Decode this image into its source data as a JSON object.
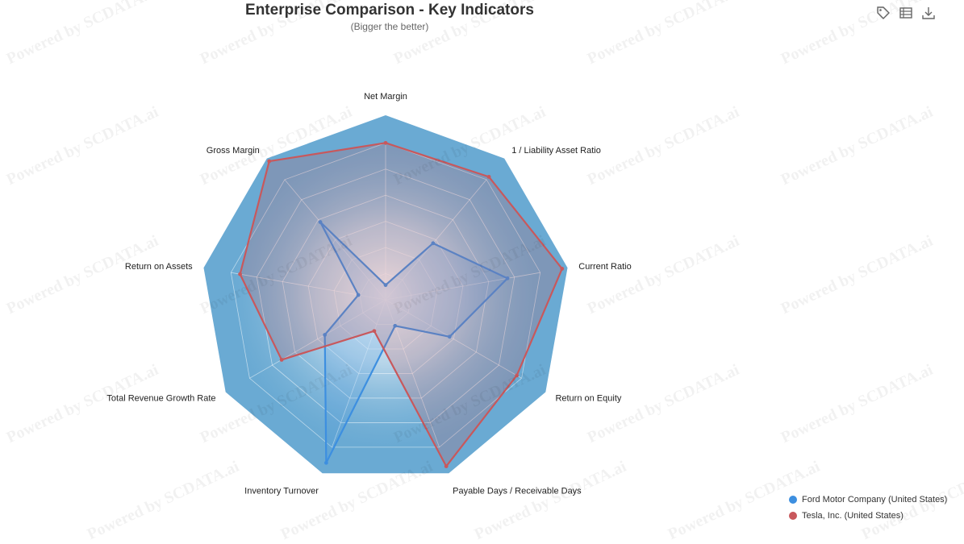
{
  "title": "Enterprise Comparison - Key Indicators",
  "subtitle": "(Bigger the better)",
  "watermark_text": "Powered by SCDATA.ai",
  "toolbar": {
    "icons": [
      "tag-icon",
      "table-icon",
      "download-icon"
    ]
  },
  "colors": {
    "background_polygon": "#6aaad3",
    "ford": "#3d8fe0",
    "tesla": "#c8585c"
  },
  "chart_data": {
    "type": "radar",
    "title": "Enterprise Comparison - Key Indicators",
    "subtitle": "(Bigger the better)",
    "indicators": [
      "Net Margin",
      "1 / Liability Asset Ratio",
      "Current Ratio",
      "Return on Equity",
      "Payable Days / Receivable Days",
      "Inventory Turnover",
      "Total Revenue Growth Rate",
      "Return on Assets",
      "Gross Margin"
    ],
    "max": 1,
    "series": [
      {
        "name": "Ford Motor Company (United States)",
        "values": [
          0.08,
          0.4,
          0.67,
          0.4,
          0.15,
          0.94,
          0.38,
          0.15,
          0.55
        ]
      },
      {
        "name": "Tesla, Inc. (United States)",
        "values": [
          0.85,
          0.87,
          0.97,
          0.82,
          0.96,
          0.18,
          0.65,
          0.8,
          0.98
        ]
      }
    ],
    "legend_position": "bottom-right"
  }
}
